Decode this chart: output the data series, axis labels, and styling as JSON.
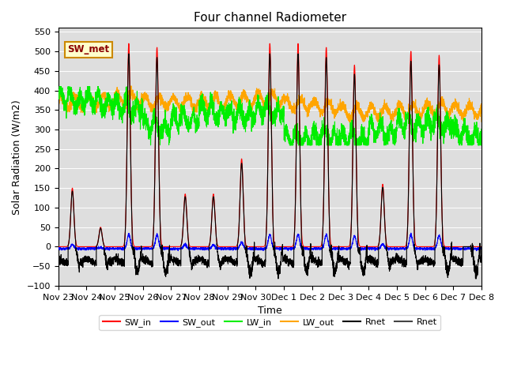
{
  "title": "Four channel Radiometer",
  "xlabel": "Time",
  "ylabel": "Solar Radiation (W/m2)",
  "ylim": [
    -100,
    560
  ],
  "yticks": [
    -100,
    -50,
    0,
    50,
    100,
    150,
    200,
    250,
    300,
    350,
    400,
    450,
    500,
    550
  ],
  "annotation": "SW_met",
  "colors": {
    "SW_in": "#ff0000",
    "SW_out": "#0000ff",
    "LW_in": "#00ee00",
    "LW_out": "#ffa500",
    "Rnet1": "#000000",
    "Rnet2": "#444444"
  },
  "bg_color": "#dedede",
  "sw_peaks": [
    150,
    50,
    520,
    510,
    135,
    135,
    225,
    520,
    520,
    510,
    465,
    160,
    500,
    490,
    0
  ],
  "xtick_labels": [
    "Nov 23",
    "Nov 24",
    "Nov 25",
    "Nov 26",
    "Nov 27",
    "Nov 28",
    "Nov 29",
    "Nov 30",
    "Dec 1",
    "Dec 2",
    "Dec 3",
    "Dec 4",
    "Dec 5",
    "Dec 6",
    "Dec 7",
    "Dec 8"
  ]
}
